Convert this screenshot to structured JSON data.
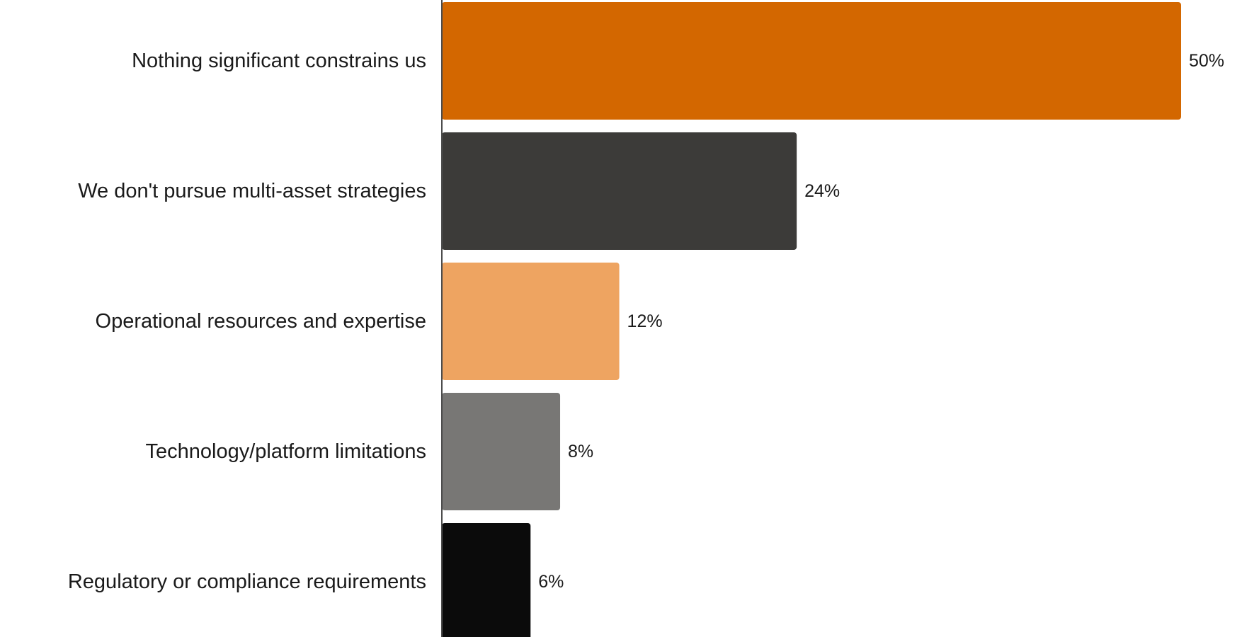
{
  "chart_data": {
    "type": "bar",
    "orientation": "horizontal",
    "title": "",
    "xlabel": "",
    "ylabel": "",
    "xlim": [
      0,
      50
    ],
    "grid": false,
    "categories": [
      "Nothing significant constrains us",
      "We don't pursue multi-asset strategies",
      "Operational resources and expertise",
      "Technology/platform limitations",
      "Regulatory or compliance requirements"
    ],
    "values": [
      50,
      24,
      12,
      8,
      6
    ],
    "value_labels": [
      "50%",
      "24%",
      "12%",
      "8%",
      "6%"
    ],
    "colors": [
      "#d36700",
      "#3c3b39",
      "#eea461",
      "#787775",
      "#0b0b0b"
    ],
    "axis_color": "#4d4d4d"
  }
}
